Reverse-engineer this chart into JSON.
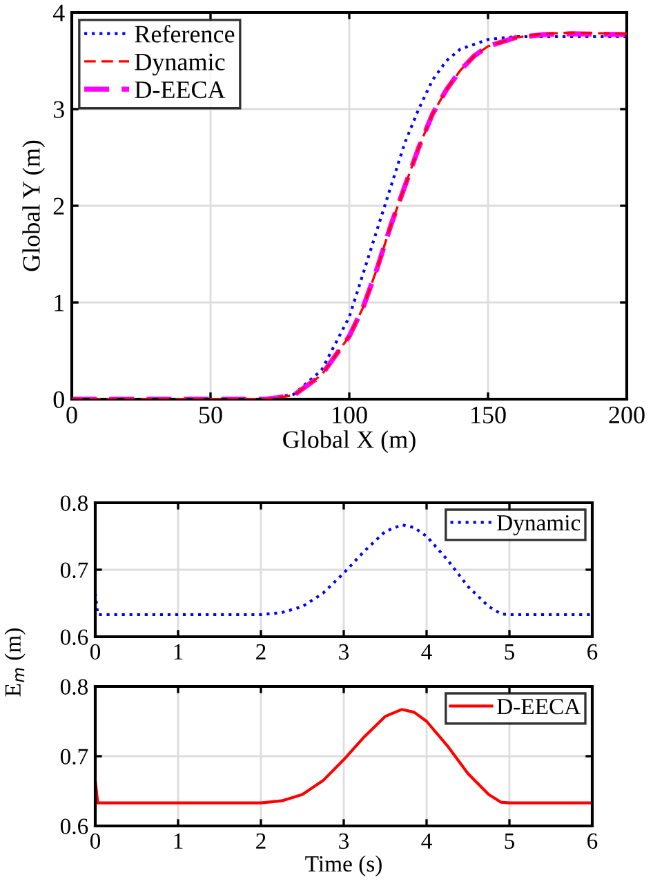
{
  "chart_data": [
    {
      "type": "line",
      "xlabel": "Global X (m)",
      "ylabel": "Global Y (m)",
      "xlim": [
        0,
        200
      ],
      "xticks": [
        0,
        50,
        100,
        150,
        200
      ],
      "ylim": [
        0,
        4
      ],
      "yticks": [
        0,
        1,
        2,
        3,
        4
      ],
      "grid": true,
      "legend": "top left",
      "series": [
        {
          "name": "Reference",
          "color": "#0000ff",
          "line_style": "dotted",
          "x": [
            0,
            70,
            80,
            90,
            100,
            105,
            110,
            115,
            120,
            125,
            130,
            135,
            140,
            150,
            160,
            200
          ],
          "values": [
            0,
            0,
            0.05,
            0.3,
            0.85,
            1.3,
            1.75,
            2.2,
            2.65,
            3.0,
            3.3,
            3.5,
            3.62,
            3.72,
            3.75,
            3.75
          ]
        },
        {
          "name": "Dynamic",
          "color": "#ff0000",
          "line_style": "dashed",
          "x": [
            0,
            70,
            80,
            90,
            100,
            105,
            110,
            115,
            120,
            125,
            130,
            135,
            140,
            145,
            150,
            160,
            170,
            180,
            200
          ],
          "values": [
            0,
            0,
            0.04,
            0.25,
            0.65,
            0.95,
            1.35,
            1.8,
            2.2,
            2.6,
            2.95,
            3.2,
            3.4,
            3.55,
            3.65,
            3.74,
            3.78,
            3.79,
            3.78
          ]
        },
        {
          "name": "D-EECA",
          "color": "#ff00ff",
          "line_style": "dashed",
          "x": [
            0,
            70,
            80,
            90,
            100,
            105,
            110,
            115,
            120,
            125,
            130,
            135,
            140,
            145,
            150,
            160,
            170,
            180,
            200
          ],
          "values": [
            0,
            0,
            0.04,
            0.25,
            0.65,
            0.95,
            1.35,
            1.8,
            2.2,
            2.6,
            2.95,
            3.2,
            3.4,
            3.55,
            3.65,
            3.74,
            3.77,
            3.78,
            3.77
          ]
        }
      ]
    },
    {
      "type": "line",
      "ylabel": "E$_{m}$ (m)",
      "xlim": [
        0,
        6
      ],
      "xticks": [
        0,
        1,
        2,
        3,
        4,
        5,
        6
      ],
      "ylim": [
        0.6,
        0.8
      ],
      "yticks": [
        0.6,
        0.7,
        0.8
      ],
      "grid": true,
      "legend": "top right",
      "series": [
        {
          "name": "Dynamic",
          "color": "#0000ff",
          "line_style": "dotted",
          "x": [
            0,
            0.03,
            2,
            2.25,
            2.5,
            2.75,
            3,
            3.25,
            3.5,
            3.7,
            3.85,
            4,
            4.25,
            4.5,
            4.75,
            4.9,
            5,
            6
          ],
          "values": [
            0.665,
            0.633,
            0.633,
            0.636,
            0.645,
            0.665,
            0.695,
            0.728,
            0.757,
            0.767,
            0.763,
            0.75,
            0.715,
            0.675,
            0.645,
            0.634,
            0.633,
            0.633
          ]
        }
      ]
    },
    {
      "type": "line",
      "xlabel": "Time (s)",
      "xlim": [
        0,
        6
      ],
      "xticks": [
        0,
        1,
        2,
        3,
        4,
        5,
        6
      ],
      "ylim": [
        0.6,
        0.8
      ],
      "yticks": [
        0.6,
        0.7,
        0.8
      ],
      "grid": true,
      "legend": "top right",
      "series": [
        {
          "name": "D-EECA",
          "color": "#ff0000",
          "line_style": "solid",
          "x": [
            0,
            0.03,
            2,
            2.25,
            2.5,
            2.75,
            3,
            3.25,
            3.5,
            3.7,
            3.85,
            4,
            4.25,
            4.5,
            4.75,
            4.9,
            5,
            6
          ],
          "values": [
            0.665,
            0.633,
            0.633,
            0.636,
            0.645,
            0.665,
            0.695,
            0.728,
            0.757,
            0.767,
            0.763,
            0.75,
            0.715,
            0.675,
            0.645,
            0.634,
            0.633,
            0.633
          ]
        }
      ]
    }
  ]
}
